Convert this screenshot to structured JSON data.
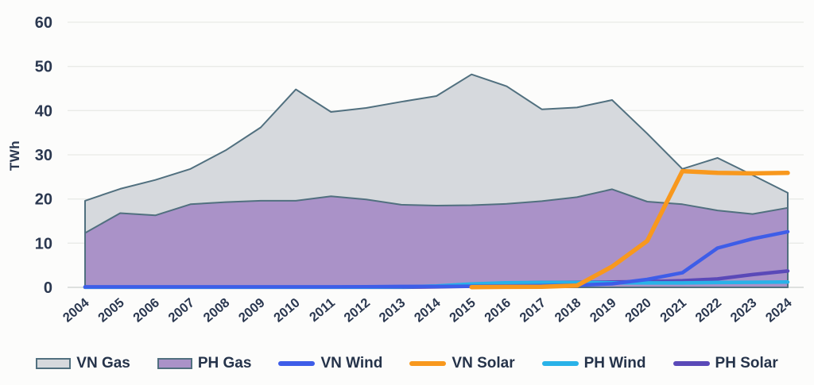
{
  "chart_data": {
    "type": "area",
    "title": "",
    "xlabel": "",
    "ylabel": "TWh",
    "ylim": [
      0,
      60
    ],
    "y_ticks": [
      0,
      10,
      20,
      30,
      40,
      50,
      60
    ],
    "grid": true,
    "legend_position": "bottom",
    "categories": [
      2004,
      2005,
      2006,
      2007,
      2008,
      2009,
      2010,
      2011,
      2012,
      2013,
      2014,
      2015,
      2016,
      2017,
      2018,
      2019,
      2020,
      2021,
      2022,
      2023,
      2024
    ],
    "series": [
      {
        "name": "VN Gas",
        "type": "area",
        "fill": "#d6d9dd",
        "stroke": "#51707f",
        "z": 1,
        "values": [
          19.6,
          22.3,
          24.3,
          26.8,
          31.0,
          36.2,
          44.8,
          39.7,
          40.6,
          42.0,
          43.3,
          48.2,
          45.5,
          40.3,
          40.7,
          42.4,
          34.8,
          26.8,
          29.3,
          25.4,
          21.4
        ]
      },
      {
        "name": "PH Gas",
        "type": "area",
        "fill": "#aa92c8",
        "stroke": "#51707f",
        "z": 2,
        "values": [
          12.3,
          16.8,
          16.3,
          18.8,
          19.3,
          19.6,
          19.6,
          20.6,
          19.9,
          18.7,
          18.5,
          18.6,
          18.9,
          19.5,
          20.4,
          22.2,
          19.4,
          18.8,
          17.4,
          16.6,
          18.0
        ]
      },
      {
        "name": "VN Wind",
        "type": "line",
        "color": "#3e5de8",
        "z": 5,
        "values": [
          0.1,
          0.1,
          0.1,
          0.1,
          0.1,
          0.1,
          0.1,
          0.1,
          0.15,
          0.2,
          0.2,
          0.25,
          0.3,
          0.4,
          0.5,
          0.8,
          1.8,
          3.3,
          8.9,
          11.0,
          12.6
        ]
      },
      {
        "name": "VN Solar",
        "type": "line",
        "color": "#f8981d",
        "z": 6,
        "values": [
          null,
          null,
          null,
          null,
          null,
          null,
          null,
          null,
          null,
          null,
          null,
          0.05,
          0.1,
          0.15,
          0.4,
          4.7,
          10.5,
          26.3,
          25.9,
          25.8,
          25.9
        ]
      },
      {
        "name": "PH  Wind",
        "type": "line",
        "color": "#29b2e8",
        "z": 4,
        "values": [
          0.05,
          0.05,
          0.05,
          0.05,
          0.05,
          0.05,
          0.05,
          0.05,
          0.05,
          0.1,
          0.3,
          0.75,
          1.05,
          1.1,
          1.1,
          1.05,
          1.0,
          1.0,
          1.1,
          1.15,
          1.2
        ]
      },
      {
        "name": "PH Solar",
        "type": "line",
        "color": "#5a49b8",
        "z": 3,
        "values": [
          0.02,
          0.02,
          0.02,
          0.02,
          0.02,
          0.02,
          0.02,
          0.02,
          0.02,
          0.02,
          0.1,
          0.25,
          0.95,
          1.1,
          1.15,
          1.2,
          1.3,
          1.5,
          1.9,
          2.9,
          3.7
        ]
      }
    ]
  }
}
